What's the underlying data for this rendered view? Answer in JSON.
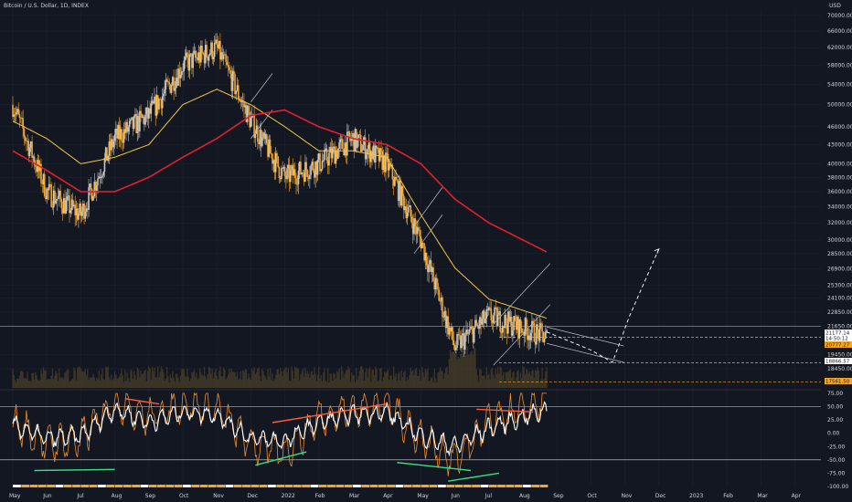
{
  "header": {
    "title": "Bitcoin / U.S. Dollar, 1D, INDEX"
  },
  "price_axis": {
    "unit": "USD",
    "ticks": [
      "70000.00",
      "66000.00",
      "62000.00",
      "58000.00",
      "54000.00",
      "50000.00",
      "46000.00",
      "43000.00",
      "40000.00",
      "38000.00",
      "36000.00",
      "34000.00",
      "32000.00",
      "30000.00",
      "28500.00",
      "26900.00",
      "25300.00",
      "24100.00",
      "22850.00",
      "21650.00",
      "19450.00",
      "18450.00"
    ]
  },
  "price_badges": [
    {
      "label": "21177.14",
      "bg": "#ffffff",
      "fg": "#131722"
    },
    {
      "label": "14:50:12",
      "bg": "#ffffff",
      "fg": "#131722"
    },
    {
      "label": "20777.27",
      "bg": "#f5a623",
      "fg": "#131722"
    },
    {
      "label": "18866.57",
      "bg": "#ffffff",
      "fg": "#131722"
    },
    {
      "label": "17561.50",
      "bg": "#f5a623",
      "fg": "#131722"
    }
  ],
  "oscillator_axis": {
    "ticks": [
      "75.00",
      "50.00",
      "25.00",
      "0.00",
      "-25.00",
      "-50.00",
      "-75.00",
      "-100.00"
    ]
  },
  "time_axis": {
    "ticks": [
      "May",
      "Jun",
      "Jul",
      "Aug",
      "Sep",
      "Oct",
      "Nov",
      "Dec",
      "2022",
      "Feb",
      "Mar",
      "Apr",
      "May",
      "Jun",
      "Jul",
      "Aug",
      "Sep",
      "Oct",
      "Nov",
      "Dec",
      "2023",
      "Feb",
      "Mar",
      "Apr"
    ]
  },
  "colors": {
    "background": "#131722",
    "candle": "#f5a623",
    "candle_alt": "#c8c8c8",
    "ma_fast": "#f5c542",
    "ma_slow": "#e0202e",
    "ma_mid": "#2a9d8f",
    "grid": "#1e222d",
    "projection": "#ffffff",
    "divergence_bear": "#ff5a3c",
    "divergence_bull": "#35e080",
    "osc_white": "#ffffff",
    "osc_orange": "#f28c28"
  },
  "chart_data": {
    "type": "line",
    "title": "Bitcoin / U.S. Dollar, 1D, INDEX",
    "xlabel": "",
    "ylabel": "USD",
    "scale": "log",
    "ylim": [
      17000,
      72000
    ],
    "x": [
      "2021-05",
      "2021-06",
      "2021-07",
      "2021-08",
      "2021-09",
      "2021-10",
      "2021-11",
      "2021-12",
      "2022-01",
      "2022-02",
      "2022-03",
      "2022-04",
      "2022-05",
      "2022-06",
      "2022-07",
      "2022-08"
    ],
    "series": [
      {
        "values": [
          50000,
          36000,
          33000,
          44000,
          48000,
          58000,
          62000,
          47000,
          38000,
          40000,
          44000,
          40000,
          30000,
          20000,
          22500,
          21500
        ]
      },
      {
        "values": [
          47000,
          44000,
          40000,
          41000,
          43000,
          50000,
          53000,
          50000,
          46000,
          42000,
          42000,
          41000,
          33000,
          27000,
          24000,
          23000
        ]
      },
      {
        "values": [
          42000,
          39000,
          36000,
          36000,
          38000,
          41000,
          44000,
          48000,
          49000,
          46000,
          44000,
          43000,
          40000,
          35000,
          32000,
          30000
        ]
      }
    ],
    "annotations": {
      "horizontal_levels": [
        21650,
        20777.27,
        18866.57,
        17561.5
      ],
      "projection_path": [
        [
          "2022-08-22",
          21200
        ],
        [
          "2022-10-01",
          19800
        ],
        [
          "2022-10-20",
          18900
        ],
        [
          "2022-11-05",
          22500
        ],
        [
          "2022-12-01",
          29000
        ]
      ]
    },
    "oscillator": {
      "ylim": [
        -100,
        80
      ],
      "levels": [
        50,
        -50
      ],
      "x": [
        "2021-05",
        "2021-06",
        "2021-07",
        "2021-08",
        "2021-09",
        "2021-10",
        "2021-11",
        "2021-12",
        "2022-01",
        "2022-02",
        "2022-03",
        "2022-04",
        "2022-05",
        "2022-06",
        "2022-07",
        "2022-08"
      ],
      "white": [
        15,
        -10,
        -5,
        45,
        20,
        40,
        35,
        -10,
        -15,
        20,
        35,
        40,
        -5,
        -25,
        10,
        30
      ],
      "orange": [
        20,
        -20,
        -10,
        60,
        30,
        55,
        45,
        -20,
        -35,
        30,
        45,
        55,
        -10,
        -50,
        20,
        45
      ]
    }
  }
}
